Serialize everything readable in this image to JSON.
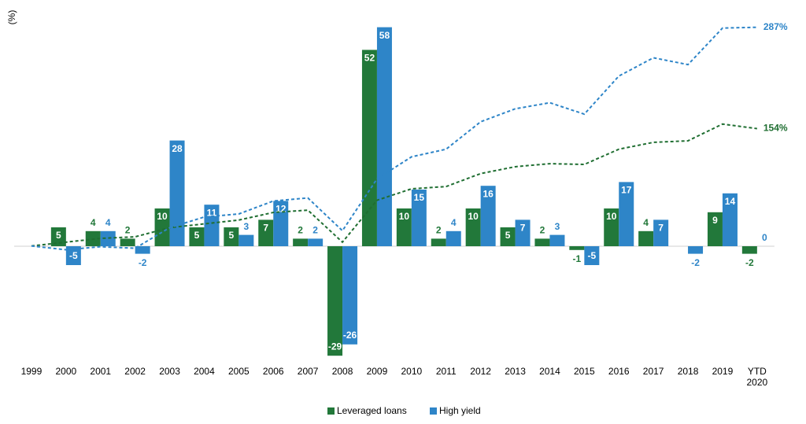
{
  "chart_data": {
    "type": "bar",
    "ylabel": "(%)",
    "categories": [
      "1999",
      "2000",
      "2001",
      "2002",
      "2003",
      "2004",
      "2005",
      "2006",
      "2007",
      "2008",
      "2009",
      "2010",
      "2011",
      "2012",
      "2013",
      "2014",
      "2015",
      "2016",
      "2017",
      "2018",
      "2019",
      "YTD 2020"
    ],
    "ylim": [
      -30,
      60
    ],
    "y2lim": [
      -149,
      297
    ],
    "series": [
      {
        "name": "Leveraged loans",
        "type": "bar",
        "color": "#22783a",
        "values": [
          null,
          5,
          4,
          2,
          10,
          5,
          5,
          7,
          2,
          -29,
          52,
          10,
          2,
          10,
          5,
          2,
          -1,
          10,
          4,
          null,
          9,
          -2
        ]
      },
      {
        "name": "High yield",
        "type": "bar",
        "color": "#2e85c8",
        "values": [
          null,
          -5,
          4,
          -2,
          28,
          11,
          3,
          12,
          2,
          -26,
          58,
          15,
          4,
          16,
          7,
          3,
          -5,
          17,
          7,
          -2,
          14,
          0
        ]
      },
      {
        "type": "line",
        "axis": "y2",
        "color": "#1f6e31",
        "end_label": "154%",
        "values": [
          0,
          5,
          10,
          12,
          24,
          29,
          34,
          44,
          47,
          5,
          60,
          75,
          78,
          95,
          104,
          108,
          107,
          127,
          136,
          138,
          160,
          154
        ]
      },
      {
        "type": "line",
        "axis": "y2",
        "color": "#2e85c8",
        "end_label": "287%",
        "values": [
          0,
          -5,
          -1,
          -3,
          24,
          38,
          42,
          59,
          63,
          20,
          88,
          117,
          127,
          163,
          180,
          188,
          173,
          223,
          247,
          238,
          286,
          287
        ]
      }
    ]
  }
}
